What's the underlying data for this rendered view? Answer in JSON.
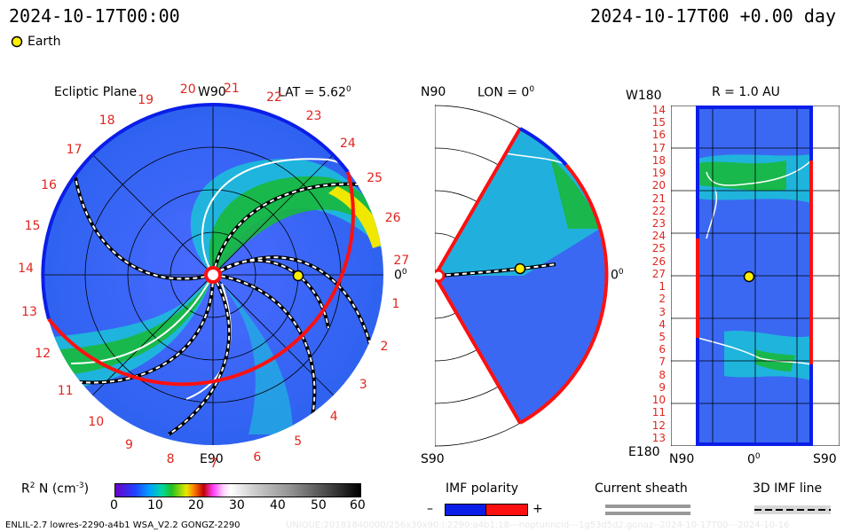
{
  "header": {
    "datetime_left": "2024-10-17T00:00",
    "datetime_right": "2024-10-17T00 +0.00 day"
  },
  "legend": {
    "earth_label": "Earth"
  },
  "panel_ecliptic": {
    "title": "Ecliptic Plane",
    "top_label": "W90",
    "bottom_label": "E90",
    "right_label": "0",
    "lat_label": "LAT = 5.62",
    "deg": "0",
    "numbers": [
      "1",
      "2",
      "3",
      "4",
      "5",
      "6",
      "7",
      "8",
      "9",
      "10",
      "11",
      "12",
      "13",
      "14",
      "15",
      "16",
      "17",
      "18",
      "19",
      "20",
      "21",
      "22",
      "23",
      "24",
      "25",
      "26",
      "27"
    ]
  },
  "panel_meridional": {
    "top_label": "N90",
    "bottom_label": "S90",
    "lon_label": "LON = 0",
    "right_label": "0",
    "deg": "0"
  },
  "panel_radial": {
    "title": "R = 1.0 AU",
    "top_left": "W180",
    "bottom_left": "E180",
    "bottom_ticks": [
      "N90",
      "0",
      "S90"
    ],
    "deg": "0",
    "left_ticks": [
      "14",
      "15",
      "16",
      "17",
      "18",
      "19",
      "20",
      "21",
      "22",
      "23",
      "24",
      "25",
      "26",
      "27",
      "1",
      "2",
      "3",
      "4",
      "5",
      "6",
      "7",
      "8",
      "9",
      "10",
      "11",
      "12",
      "13"
    ]
  },
  "colorbar": {
    "label": "R",
    "label_sup": "2",
    "label_rest": "N (cm",
    "unit_sup": "-3",
    "label_end": ")",
    "ticks": [
      "0",
      "10",
      "20",
      "30",
      "40",
      "50",
      "60"
    ]
  },
  "imf": {
    "title": "IMF polarity",
    "minus": "–",
    "plus": "+",
    "colors": {
      "negative": "#0a1ee8",
      "positive": "#ff1010"
    }
  },
  "sheath": {
    "title": "Current sheath"
  },
  "imfline": {
    "title": "3D IMF line"
  },
  "footer": {
    "left": "ENLIL-2.7 lowres-2290-a4b1 WSA_V2.2 GONGZ-2290",
    "right": "UNIQUE:20181840000/256x30x90:i:2290:a4b1:18---noptunncld---1g53d5d2.gonaz--2024-10-17T00---2024-10-16"
  }
}
